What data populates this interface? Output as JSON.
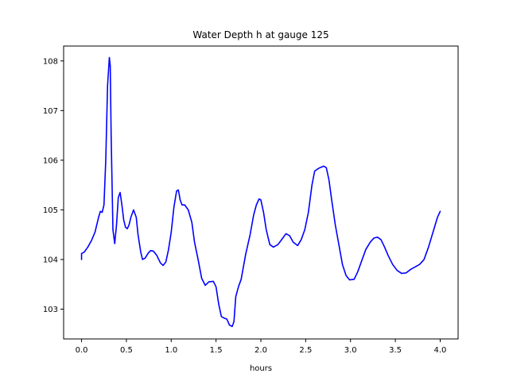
{
  "chart_data": {
    "type": "line",
    "title": "Water Depth h at gauge 125",
    "xlabel": "hours",
    "ylabel": "",
    "xlim": [
      -0.2,
      4.2
    ],
    "ylim": [
      102.4,
      108.3
    ],
    "xticks": [
      0.0,
      0.5,
      1.0,
      1.5,
      2.0,
      2.5,
      3.0,
      3.5,
      4.0
    ],
    "xtick_labels": [
      "0.0",
      "0.5",
      "1.0",
      "1.5",
      "2.0",
      "2.5",
      "3.0",
      "3.5",
      "4.0"
    ],
    "yticks": [
      103,
      104,
      105,
      106,
      107,
      108
    ],
    "ytick_labels": [
      "103",
      "104",
      "105",
      "106",
      "107",
      "108"
    ],
    "grid": false,
    "series": [
      {
        "color": "#0000ff",
        "x": [
          0.0,
          0.0,
          0.03,
          0.07,
          0.11,
          0.15,
          0.19,
          0.21,
          0.23,
          0.25,
          0.27,
          0.29,
          0.31,
          0.32,
          0.33,
          0.35,
          0.37,
          0.39,
          0.41,
          0.43,
          0.45,
          0.47,
          0.49,
          0.51,
          0.53,
          0.55,
          0.58,
          0.61,
          0.63,
          0.66,
          0.68,
          0.71,
          0.74,
          0.77,
          0.8,
          0.84,
          0.88,
          0.91,
          0.94,
          0.97,
          1.0,
          1.03,
          1.06,
          1.08,
          1.1,
          1.12,
          1.15,
          1.19,
          1.23,
          1.26,
          1.3,
          1.34,
          1.38,
          1.42,
          1.47,
          1.5,
          1.53,
          1.56,
          1.59,
          1.62,
          1.65,
          1.68,
          1.7,
          1.72,
          1.75,
          1.78,
          1.83,
          1.88,
          1.92,
          1.95,
          1.98,
          2.0,
          2.03,
          2.06,
          2.1,
          2.14,
          2.19,
          2.24,
          2.28,
          2.32,
          2.36,
          2.41,
          2.45,
          2.49,
          2.53,
          2.57,
          2.6,
          2.63,
          2.66,
          2.7,
          2.73,
          2.76,
          2.79,
          2.83,
          2.87,
          2.91,
          2.95,
          2.99,
          3.04,
          3.08,
          3.12,
          3.17,
          3.22,
          3.26,
          3.3,
          3.34,
          3.38,
          3.42,
          3.47,
          3.52,
          3.57,
          3.62,
          3.67,
          3.72,
          3.77,
          3.82,
          3.87,
          3.92,
          3.97,
          4.0
        ],
        "y": [
          104.0,
          104.12,
          104.15,
          104.25,
          104.38,
          104.55,
          104.85,
          104.97,
          104.95,
          105.1,
          106.0,
          107.5,
          108.07,
          107.9,
          106.5,
          104.6,
          104.32,
          104.7,
          105.25,
          105.35,
          105.1,
          104.8,
          104.65,
          104.62,
          104.7,
          104.85,
          105.0,
          104.85,
          104.5,
          104.15,
          104.0,
          104.03,
          104.12,
          104.18,
          104.17,
          104.08,
          103.93,
          103.88,
          103.95,
          104.2,
          104.55,
          105.05,
          105.38,
          105.4,
          105.2,
          105.1,
          105.1,
          105.0,
          104.75,
          104.35,
          104.0,
          103.62,
          103.48,
          103.55,
          103.56,
          103.45,
          103.1,
          102.85,
          102.82,
          102.8,
          102.68,
          102.65,
          102.75,
          103.25,
          103.45,
          103.6,
          104.1,
          104.5,
          104.9,
          105.1,
          105.22,
          105.2,
          104.95,
          104.6,
          104.3,
          104.25,
          104.3,
          104.42,
          104.52,
          104.48,
          104.35,
          104.28,
          104.4,
          104.6,
          104.95,
          105.5,
          105.78,
          105.82,
          105.85,
          105.88,
          105.85,
          105.6,
          105.2,
          104.7,
          104.3,
          103.9,
          103.68,
          103.59,
          103.6,
          103.75,
          103.95,
          104.2,
          104.35,
          104.43,
          104.45,
          104.4,
          104.25,
          104.08,
          103.9,
          103.78,
          103.72,
          103.73,
          103.8,
          103.85,
          103.9,
          104.0,
          104.25,
          104.55,
          104.85,
          104.97
        ]
      }
    ]
  }
}
